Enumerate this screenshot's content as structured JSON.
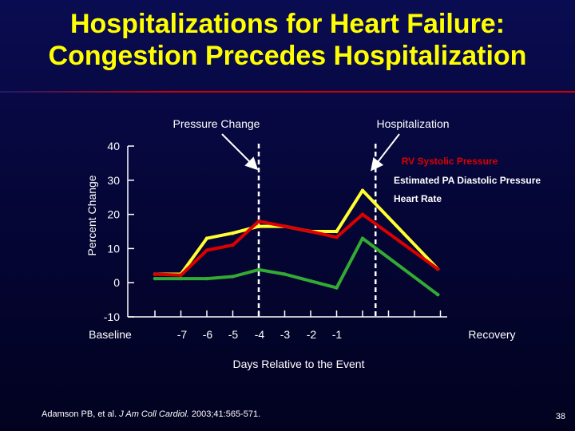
{
  "slide": {
    "title_line1": "Hospitalizations for Heart Failure:",
    "title_line2": "Congestion Precedes Hospitalization",
    "citation_authors": "Adamson PB, et al. ",
    "citation_journal": "J Am Coll Cardiol.",
    "citation_details": " 2003;41:565-571.",
    "slide_number": "38"
  },
  "chart_data": {
    "type": "line",
    "title": "",
    "xlabel": "Days Relative to the Event",
    "ylabel": "Percent Change",
    "ylim": [
      -10,
      40
    ],
    "y_ticks": [
      40,
      30,
      20,
      10,
      0,
      -10
    ],
    "x_ticks": [
      "Baseline",
      "-7",
      "-6",
      "-5",
      "-4",
      "-3",
      "-2",
      "-1",
      "Recovery"
    ],
    "x_positions": [
      0,
      1,
      2,
      3,
      4,
      5,
      6,
      7,
      8,
      9,
      10,
      11
    ],
    "annotations": [
      {
        "label": "Pressure Change",
        "x": 4
      },
      {
        "label": "Hospitalization",
        "x": 8.5
      }
    ],
    "series": [
      {
        "name": "RV Systolic Pressure",
        "color": "#ffff33",
        "x": [
          0,
          1,
          2,
          3,
          4,
          5,
          6,
          7,
          8,
          10.9
        ],
        "values": [
          2.5,
          2.5,
          13,
          14.5,
          16.5,
          16.5,
          15,
          15,
          27,
          4
        ]
      },
      {
        "name": "Estimated PA Diastolic Pressure",
        "color": "#dd0000",
        "x": [
          0,
          1,
          2,
          3,
          4,
          5,
          6,
          7,
          8,
          10.9
        ],
        "values": [
          2.5,
          2.2,
          9.5,
          11,
          18,
          16.5,
          15,
          13.3,
          20,
          4
        ]
      },
      {
        "name": "Heart Rate",
        "color": "#33aa33",
        "x": [
          0,
          1,
          2,
          3,
          4,
          5,
          6,
          7,
          8,
          10.9
        ],
        "values": [
          1.2,
          1.2,
          1.2,
          1.8,
          3.8,
          2.5,
          0.5,
          -1.5,
          13,
          -3.5
        ]
      }
    ]
  }
}
